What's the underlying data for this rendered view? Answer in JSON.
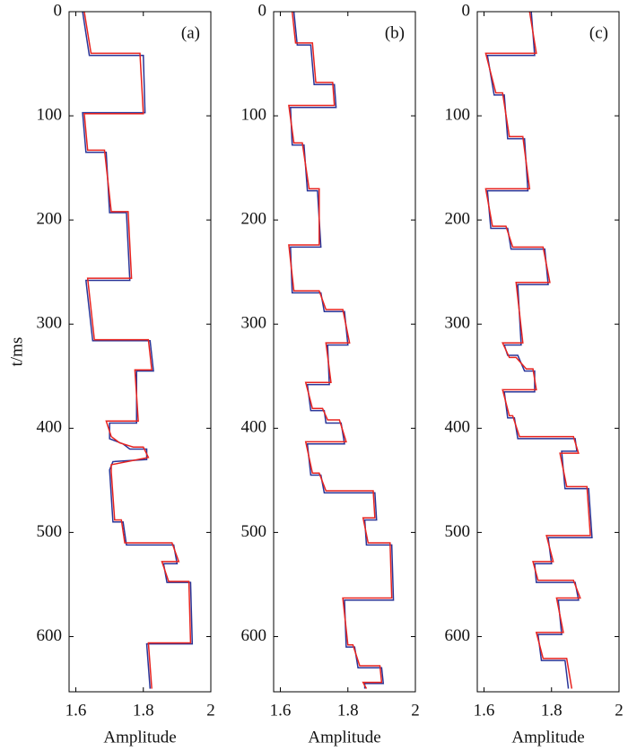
{
  "chart_data": [
    {
      "type": "line",
      "annotation": "(a)",
      "xlabel": "Amplitude",
      "ylabel": "t/ms",
      "xlim": [
        1.58,
        2.0
      ],
      "xticks": [
        1.6,
        1.8,
        2
      ],
      "ylim": [
        0,
        653
      ],
      "yticks": [
        0,
        100,
        200,
        300,
        400,
        500,
        600
      ],
      "series": [
        {
          "color": "#2a3598",
          "t": [
            0,
            42,
            42,
            97,
            97,
            135,
            135,
            193,
            193,
            258,
            258,
            316,
            316,
            345,
            345,
            395,
            395,
            410,
            415,
            420,
            420,
            430,
            432,
            440,
            490,
            490,
            512,
            512,
            530,
            530,
            548,
            548,
            607,
            607,
            650
          ],
          "values": [
            1.62,
            1.64,
            1.8,
            1.805,
            1.62,
            1.63,
            1.69,
            1.7,
            1.75,
            1.76,
            1.63,
            1.65,
            1.82,
            1.83,
            1.78,
            1.78,
            1.7,
            1.7,
            1.74,
            1.76,
            1.81,
            1.81,
            1.71,
            1.7,
            1.71,
            1.74,
            1.75,
            1.89,
            1.9,
            1.86,
            1.87,
            1.94,
            1.945,
            1.81,
            1.82
          ]
        },
        {
          "color": "#e8231f",
          "t": [
            0,
            40,
            40,
            98,
            98,
            133,
            133,
            192,
            192,
            256,
            256,
            315,
            315,
            344,
            344,
            393,
            393,
            408,
            414,
            418,
            418,
            428,
            435,
            442,
            488,
            488,
            510,
            510,
            528,
            528,
            547,
            547,
            606,
            606,
            650
          ],
          "values": [
            1.625,
            1.645,
            1.79,
            1.8,
            1.625,
            1.635,
            1.685,
            1.705,
            1.755,
            1.765,
            1.635,
            1.655,
            1.815,
            1.825,
            1.775,
            1.785,
            1.69,
            1.705,
            1.73,
            1.77,
            1.8,
            1.815,
            1.705,
            1.705,
            1.715,
            1.735,
            1.745,
            1.885,
            1.905,
            1.855,
            1.875,
            1.935,
            1.94,
            1.815,
            1.825
          ]
        }
      ]
    },
    {
      "type": "line",
      "annotation": "(b)",
      "xlabel": "Amplitude",
      "xlim": [
        1.58,
        2.0
      ],
      "xticks": [
        1.6,
        1.8,
        2
      ],
      "ylim": [
        0,
        653
      ],
      "yticks": [
        0,
        100,
        200,
        300,
        400,
        500,
        600
      ],
      "series": [
        {
          "color": "#2a3598",
          "t": [
            0,
            32,
            32,
            70,
            70,
            92,
            92,
            128,
            128,
            172,
            172,
            226,
            226,
            270,
            270,
            288,
            288,
            320,
            320,
            358,
            358,
            383,
            383,
            395,
            395,
            415,
            415,
            445,
            445,
            462,
            462,
            488,
            488,
            512,
            512,
            565,
            565,
            610,
            610,
            630,
            630,
            645,
            645,
            650
          ],
          "values": [
            1.64,
            1.65,
            1.69,
            1.7,
            1.76,
            1.765,
            1.63,
            1.635,
            1.67,
            1.68,
            1.71,
            1.72,
            1.63,
            1.635,
            1.72,
            1.73,
            1.79,
            1.8,
            1.74,
            1.745,
            1.68,
            1.69,
            1.73,
            1.735,
            1.78,
            1.79,
            1.68,
            1.69,
            1.72,
            1.73,
            1.88,
            1.885,
            1.85,
            1.855,
            1.93,
            1.935,
            1.79,
            1.795,
            1.82,
            1.83,
            1.9,
            1.905,
            1.85,
            1.85
          ]
        },
        {
          "color": "#e8231f",
          "t": [
            0,
            30,
            30,
            68,
            68,
            90,
            90,
            126,
            126,
            170,
            170,
            224,
            224,
            268,
            268,
            286,
            286,
            318,
            318,
            356,
            356,
            381,
            381,
            392,
            392,
            413,
            413,
            443,
            443,
            460,
            460,
            486,
            486,
            510,
            510,
            563,
            563,
            608,
            608,
            628,
            628,
            644,
            644,
            650
          ],
          "values": [
            1.635,
            1.645,
            1.695,
            1.705,
            1.755,
            1.76,
            1.625,
            1.64,
            1.665,
            1.685,
            1.715,
            1.715,
            1.625,
            1.64,
            1.715,
            1.735,
            1.785,
            1.805,
            1.735,
            1.75,
            1.675,
            1.695,
            1.725,
            1.74,
            1.775,
            1.795,
            1.675,
            1.695,
            1.715,
            1.735,
            1.875,
            1.88,
            1.845,
            1.86,
            1.925,
            1.93,
            1.785,
            1.8,
            1.815,
            1.835,
            1.895,
            1.9,
            1.845,
            1.855
          ]
        }
      ]
    },
    {
      "type": "line",
      "annotation": "(c)",
      "xlabel": "Amplitude",
      "xlim": [
        1.58,
        2.0
      ],
      "xticks": [
        1.6,
        1.8,
        2
      ],
      "ylim": [
        0,
        653
      ],
      "yticks": [
        0,
        100,
        200,
        300,
        400,
        500,
        600
      ],
      "series": [
        {
          "color": "#2a3598",
          "t": [
            0,
            42,
            42,
            80,
            80,
            122,
            122,
            172,
            172,
            208,
            208,
            228,
            228,
            262,
            262,
            320,
            320,
            330,
            330,
            345,
            345,
            365,
            365,
            390,
            390,
            410,
            410,
            422,
            422,
            458,
            458,
            505,
            505,
            530,
            530,
            548,
            548,
            565,
            565,
            598,
            598,
            623,
            623,
            650
          ],
          "values": [
            1.74,
            1.75,
            1.61,
            1.63,
            1.66,
            1.67,
            1.72,
            1.73,
            1.61,
            1.62,
            1.67,
            1.68,
            1.78,
            1.79,
            1.7,
            1.71,
            1.66,
            1.67,
            1.7,
            1.72,
            1.75,
            1.75,
            1.66,
            1.67,
            1.69,
            1.7,
            1.87,
            1.875,
            1.83,
            1.84,
            1.91,
            1.92,
            1.79,
            1.8,
            1.75,
            1.755,
            1.87,
            1.88,
            1.82,
            1.83,
            1.76,
            1.77,
            1.84,
            1.85
          ]
        },
        {
          "color": "#e8231f",
          "t": [
            0,
            40,
            40,
            78,
            78,
            120,
            120,
            170,
            170,
            206,
            206,
            226,
            226,
            260,
            260,
            318,
            318,
            332,
            332,
            343,
            343,
            363,
            363,
            388,
            388,
            408,
            408,
            424,
            424,
            456,
            456,
            503,
            503,
            528,
            528,
            546,
            546,
            563,
            563,
            596,
            596,
            621,
            621,
            650
          ],
          "values": [
            1.735,
            1.755,
            1.605,
            1.635,
            1.655,
            1.675,
            1.715,
            1.735,
            1.605,
            1.625,
            1.665,
            1.685,
            1.775,
            1.795,
            1.695,
            1.715,
            1.655,
            1.675,
            1.695,
            1.725,
            1.745,
            1.755,
            1.655,
            1.675,
            1.685,
            1.705,
            1.865,
            1.88,
            1.825,
            1.845,
            1.905,
            1.915,
            1.785,
            1.805,
            1.745,
            1.76,
            1.865,
            1.885,
            1.815,
            1.835,
            1.755,
            1.775,
            1.845,
            1.86
          ]
        }
      ]
    }
  ]
}
